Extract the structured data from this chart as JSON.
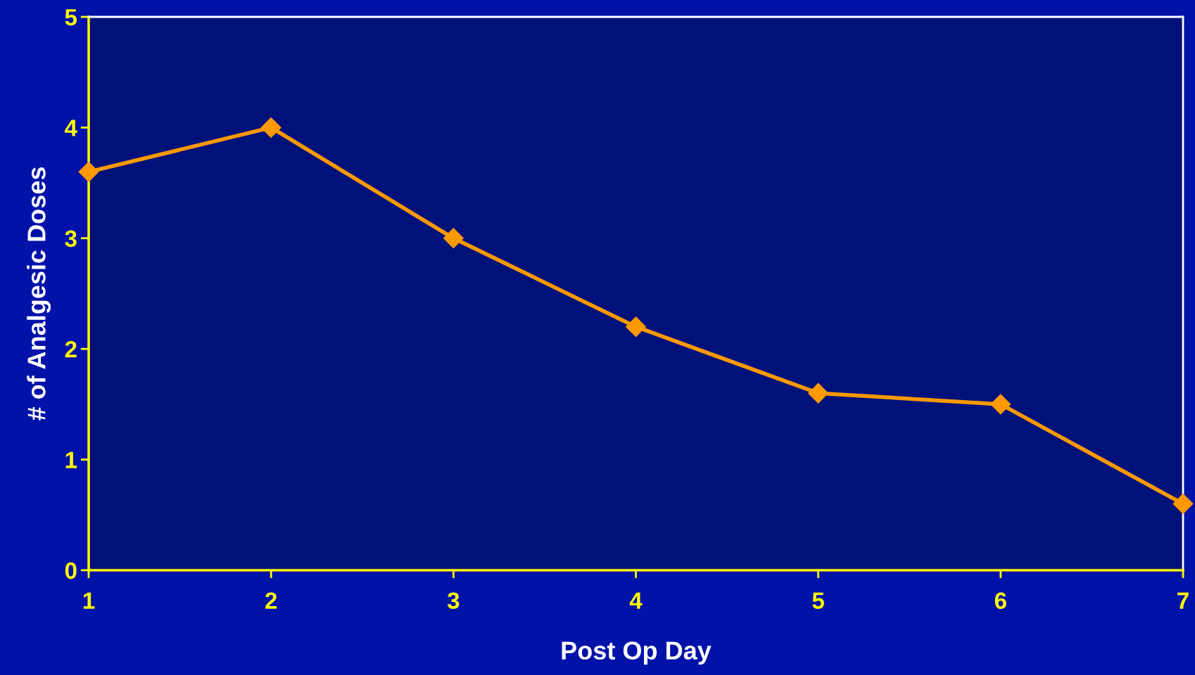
{
  "chart_data": {
    "type": "line",
    "xlabel": "Post Op Day",
    "ylabel": "# of Analgesic Doses",
    "x": [
      1,
      2,
      3,
      4,
      5,
      6,
      7
    ],
    "series": [
      {
        "color": "#ff9900",
        "values": [
          3.6,
          4.0,
          3.0,
          2.2,
          1.6,
          1.5,
          0.6
        ]
      }
    ],
    "xlim": [
      1,
      7
    ],
    "xticks": [
      1,
      2,
      3,
      4,
      5,
      6,
      7
    ],
    "ylim": [
      0,
      5
    ],
    "yticks": [
      0,
      1,
      2,
      3,
      4,
      5
    ],
    "grid": false,
    "legend": false,
    "marker": "diamond",
    "line_style": "solid"
  }
}
